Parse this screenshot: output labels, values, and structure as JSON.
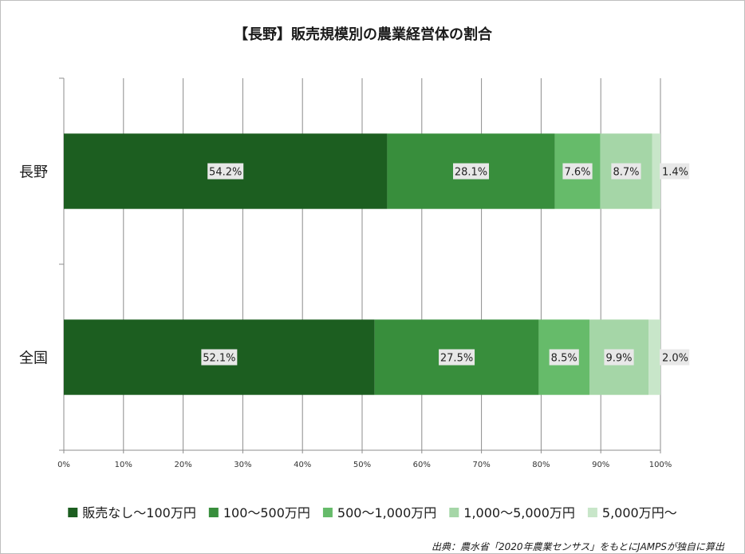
{
  "chart_data": {
    "type": "bar",
    "orientation": "horizontal",
    "stacked": "percent",
    "title": "【長野】販売規模別の農業経営体の割合",
    "categories": [
      "長野",
      "全国"
    ],
    "series": [
      {
        "name": "販売なし～100万円",
        "values": [
          54.2,
          52.1
        ],
        "labels": [
          "54.2%",
          "52.1%"
        ],
        "color": "#1c5e20"
      },
      {
        "name": "100～500万円",
        "values": [
          28.1,
          27.5
        ],
        "labels": [
          "28.1%",
          "27.5%"
        ],
        "color": "#388e3c"
      },
      {
        "name": "500～1,000万円",
        "values": [
          7.6,
          8.5
        ],
        "labels": [
          "7.6%",
          "8.5%"
        ],
        "color": "#66bb6a"
      },
      {
        "name": "1,000～5,000万円",
        "values": [
          8.7,
          9.9
        ],
        "labels": [
          "8.7%",
          "9.9%"
        ],
        "color": "#a5d6a7"
      },
      {
        "name": "5,000万円～",
        "values": [
          1.4,
          2.0
        ],
        "labels": [
          "1.4%",
          "2.0%"
        ],
        "color": "#c8e6c9"
      }
    ],
    "x_ticks": [
      "0%",
      "10%",
      "20%",
      "30%",
      "40%",
      "50%",
      "60%",
      "70%",
      "80%",
      "90%",
      "100%"
    ],
    "xlim": [
      0,
      100
    ],
    "grid": true,
    "legend_position": "bottom"
  },
  "source": "出典：農水省「2020年農業センサス」をもとにJAMPSが独自に算出"
}
